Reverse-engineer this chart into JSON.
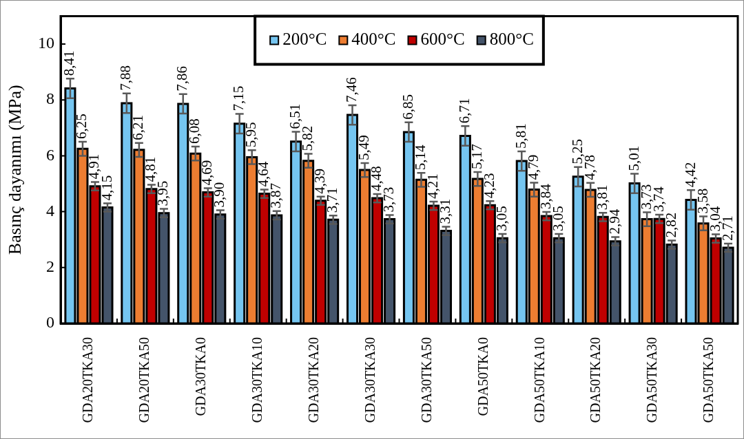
{
  "chart_data": {
    "type": "bar",
    "ylabel": "Basınç dayanımı (MPa)",
    "categories": [
      "GDA20TKA30",
      "GDA20TKA50",
      "GDA30TKA0",
      "GDA30TKA10",
      "GDA30TKA20",
      "GDA30TKA30",
      "GDA30TKA50",
      "GDA50TKA0",
      "GDA50TKA10",
      "GDA50TKA20",
      "GDA50TKA30",
      "GDA50TKA50"
    ],
    "series": [
      {
        "name": "200°C",
        "color": "#75c5f0",
        "values": [
          8.41,
          7.88,
          7.86,
          7.15,
          6.51,
          7.46,
          6.85,
          6.71,
          5.81,
          5.25,
          5.01,
          4.42
        ],
        "errors": [
          0.35,
          0.35,
          0.35,
          0.35,
          0.35,
          0.35,
          0.35,
          0.35,
          0.35,
          0.35,
          0.35,
          0.35
        ],
        "value_labels": [
          "8,41",
          "7,88",
          "7,86",
          "7,15",
          "6,51",
          "7,46",
          "6,85",
          "6,71",
          "5,81",
          "5,25",
          "5,01",
          "4,42"
        ]
      },
      {
        "name": "400°C",
        "color": "#ed7d31",
        "values": [
          6.25,
          6.21,
          6.08,
          5.95,
          5.82,
          5.49,
          5.14,
          5.17,
          4.79,
          4.78,
          3.73,
          3.58
        ],
        "errors": [
          0.25,
          0.25,
          0.25,
          0.25,
          0.25,
          0.25,
          0.25,
          0.25,
          0.25,
          0.25,
          0.25,
          0.25
        ],
        "value_labels": [
          "6,25",
          "6,21",
          "6,08",
          "5,95",
          "5,82",
          "5,49",
          "5,14",
          "5,17",
          "4,79",
          "4,78",
          "3,73",
          "3,58"
        ]
      },
      {
        "name": "600°C",
        "color": "#c00000",
        "values": [
          4.91,
          4.81,
          4.69,
          4.64,
          4.39,
          4.48,
          4.21,
          4.23,
          3.84,
          3.81,
          3.74,
          3.04
        ],
        "errors": [
          0.15,
          0.15,
          0.15,
          0.15,
          0.15,
          0.15,
          0.15,
          0.15,
          0.15,
          0.15,
          0.15,
          0.15
        ],
        "value_labels": [
          "4,91",
          "4,81",
          "4,69",
          "4,64",
          "4,39",
          "4,48",
          "4,21",
          "4,23",
          "3,84",
          "3,81",
          "3,74",
          "3,04"
        ]
      },
      {
        "name": "800°C",
        "color": "#44546a",
        "values": [
          4.15,
          3.95,
          3.9,
          3.87,
          3.71,
          3.73,
          3.31,
          3.05,
          3.05,
          2.94,
          2.82,
          2.71
        ],
        "errors": [
          0.15,
          0.15,
          0.15,
          0.15,
          0.15,
          0.15,
          0.15,
          0.15,
          0.15,
          0.15,
          0.15,
          0.15
        ],
        "value_labels": [
          "4,15",
          "3,95",
          "3,90",
          "3,87",
          "3,71",
          "3,73",
          "3,31",
          "3,05",
          "3,05",
          "2,94",
          "2,82",
          "2,71"
        ]
      }
    ],
    "ylim": [
      0,
      11
    ],
    "yticks": [
      0,
      2,
      4,
      6,
      8,
      10
    ],
    "legend": "top"
  }
}
